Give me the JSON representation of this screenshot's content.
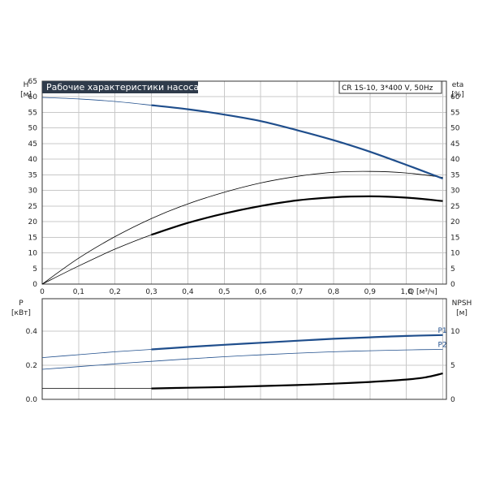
{
  "chart_data": [
    {
      "type": "line",
      "title": "Рабочие характеристики насоса",
      "subtitle": "CR 1S-10, 3*400 V, 50Hz",
      "xlabel": "Q [м³/ч]",
      "ylabel_left": [
        "H",
        "[м]"
      ],
      "ylabel_right": [
        "eta",
        "[%]"
      ],
      "xlim": [
        0,
        1.11
      ],
      "ylim_left": [
        0,
        65
      ],
      "ylim_right": [
        0,
        65
      ],
      "x_ticks": [
        "0",
        "0,1",
        "0,2",
        "0,3",
        "0,4",
        "0,5",
        "0,6",
        "0,7",
        "0,8",
        "0,9",
        "1,0"
      ],
      "y_ticks_left": [
        "0",
        "5",
        "10",
        "15",
        "20",
        "25",
        "30",
        "35",
        "40",
        "45",
        "50",
        "55",
        "60",
        "65"
      ],
      "y_ticks_right": [
        "0",
        "5",
        "10",
        "15",
        "20",
        "25",
        "30",
        "35",
        "40",
        "45",
        "50",
        "55",
        "60"
      ],
      "grid": true,
      "series": [
        {
          "name": "H",
          "color": "#1f4e8c",
          "x": [
            0,
            0.1,
            0.2,
            0.3,
            0.4,
            0.5,
            0.6,
            0.7,
            0.8,
            0.9,
            1.0,
            1.1
          ],
          "y": [
            59.8,
            59.3,
            58.5,
            57.3,
            56.0,
            54.3,
            52.2,
            49.3,
            46.1,
            42.4,
            38.2,
            33.8
          ],
          "highlight_from": 0.3
        },
        {
          "name": "eta",
          "color": "#000000",
          "x": [
            0,
            0.1,
            0.2,
            0.3,
            0.4,
            0.5,
            0.6,
            0.7,
            0.8,
            0.9,
            1.0,
            1.1
          ],
          "y": [
            0,
            8.3,
            15.2,
            21.0,
            25.7,
            29.4,
            32.4,
            34.5,
            35.8,
            36.1,
            35.6,
            34.2
          ]
        },
        {
          "name": "eta (motor)",
          "color": "#000000",
          "x": [
            0,
            0.1,
            0.2,
            0.3,
            0.4,
            0.5,
            0.6,
            0.7,
            0.8,
            0.9,
            1.0,
            1.1
          ],
          "y": [
            0,
            5.8,
            11.2,
            15.8,
            19.6,
            22.6,
            25.0,
            26.8,
            27.8,
            28.1,
            27.7,
            26.6
          ],
          "highlight_from": 0.3
        }
      ]
    },
    {
      "type": "line",
      "ylabel_left": [
        "P",
        "[кВт]"
      ],
      "ylabel_right": [
        "NPSH",
        "[м]"
      ],
      "xlim": [
        0,
        1.11
      ],
      "ylim_left": [
        0,
        0.4
      ],
      "ylim_right": [
        0,
        10
      ],
      "y_ticks_left": [
        "0.0",
        "0.2",
        "0.4"
      ],
      "y_ticks_right": [
        "0",
        "5",
        "10"
      ],
      "grid": true,
      "series": [
        {
          "name": "P1",
          "color": "#1f4e8c",
          "x": [
            0,
            0.1,
            0.2,
            0.3,
            0.4,
            0.5,
            0.6,
            0.7,
            0.8,
            0.9,
            1.0,
            1.1
          ],
          "y": [
            0.245,
            0.262,
            0.279,
            0.293,
            0.307,
            0.32,
            0.332,
            0.344,
            0.355,
            0.364,
            0.372,
            0.377
          ],
          "highlight_from": 0.3
        },
        {
          "name": "P2",
          "color": "#1f4e8c",
          "x": [
            0,
            0.1,
            0.2,
            0.3,
            0.4,
            0.5,
            0.6,
            0.7,
            0.8,
            0.9,
            1.0,
            1.1
          ],
          "y": [
            0.176,
            0.192,
            0.208,
            0.223,
            0.237,
            0.25,
            0.261,
            0.271,
            0.279,
            0.285,
            0.29,
            0.293
          ]
        },
        {
          "name": "NPSH",
          "color": "#000000",
          "axis": "right",
          "x": [
            0,
            0.1,
            0.2,
            0.3,
            0.4,
            0.5,
            0.6,
            0.7,
            0.8,
            0.9,
            1.0,
            1.05,
            1.1
          ],
          "y": [
            1.6,
            1.6,
            1.6,
            1.6,
            1.7,
            1.8,
            1.95,
            2.1,
            2.3,
            2.55,
            2.9,
            3.2,
            3.8
          ],
          "highlight_from": 0.3
        }
      ]
    }
  ]
}
